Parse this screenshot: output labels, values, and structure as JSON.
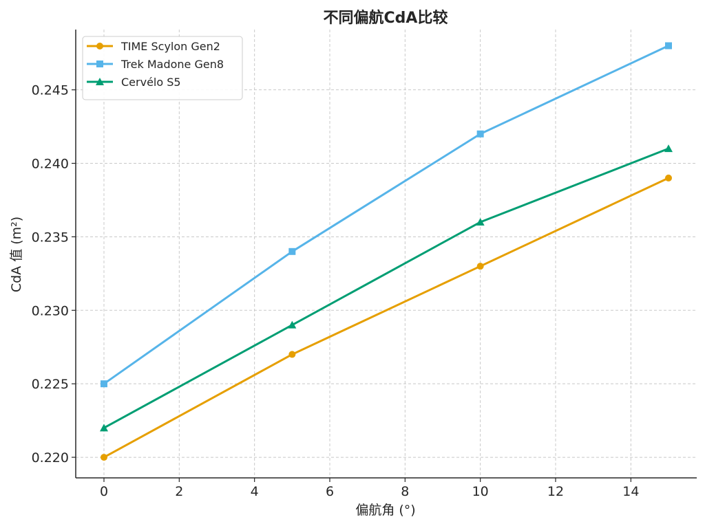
{
  "chart_data": {
    "type": "line",
    "title": "不同偏航CdA比较",
    "xlabel": "偏航角 (°)",
    "ylabel": "CdA 值 (m²)",
    "x": [
      0,
      5,
      10,
      15
    ],
    "xlim": [
      -0.75,
      15.75
    ],
    "ylim": [
      0.2186,
      0.2491
    ],
    "xticks": [
      0,
      2,
      4,
      6,
      8,
      10,
      12,
      14
    ],
    "yticks": [
      0.22,
      0.225,
      0.23,
      0.235,
      0.24,
      0.245
    ],
    "ytick_labels": [
      "0.220",
      "0.225",
      "0.230",
      "0.235",
      "0.240",
      "0.245"
    ],
    "grid": true,
    "legend_position": "top-left",
    "series": [
      {
        "name": "TIME Scylon Gen2",
        "values": [
          0.22,
          0.227,
          0.233,
          0.239
        ],
        "color": "#E69F00",
        "marker": "circle"
      },
      {
        "name": "Trek Madone Gen8",
        "values": [
          0.225,
          0.234,
          0.242,
          0.248
        ],
        "color": "#56B4E9",
        "marker": "square"
      },
      {
        "name": "Cervélo S5",
        "values": [
          0.222,
          0.229,
          0.236,
          0.241
        ],
        "color": "#009E73",
        "marker": "triangle"
      }
    ]
  }
}
